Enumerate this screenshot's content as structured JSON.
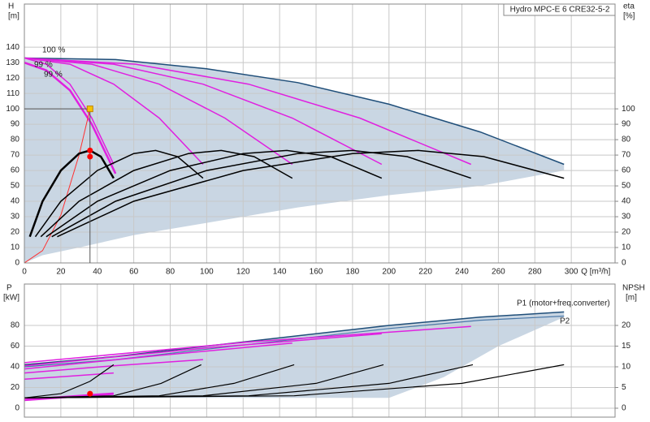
{
  "chart_data": [
    {
      "type": "line",
      "title": "Hydro MPC-E 6 CRE32-5-2",
      "ylabel": [
        "H",
        "[m]"
      ],
      "y2label": [
        "eta",
        "[%]"
      ],
      "xlabel": "Q [m³/h]",
      "xlim": [
        0,
        324
      ],
      "xticks": [
        0,
        20,
        40,
        60,
        80,
        100,
        120,
        140,
        160,
        180,
        200,
        220,
        240,
        260,
        280,
        300
      ],
      "ylim": [
        0,
        168
      ],
      "yticks": [
        0,
        10,
        20,
        30,
        40,
        50,
        60,
        70,
        80,
        90,
        100,
        110,
        120,
        130,
        140
      ],
      "y2lim": [
        0,
        168
      ],
      "y2ticks": [
        0,
        10,
        20,
        30,
        40,
        50,
        60,
        70,
        80,
        90,
        100
      ],
      "grid": true,
      "show_xtick_labels": true,
      "series": [
        {
          "kind": "area",
          "color": "#c9d6e3",
          "x": [
            0,
            50,
            100,
            150,
            200,
            250,
            296,
            296,
            250,
            200,
            150,
            100,
            60,
            30,
            10,
            0
          ],
          "values": [
            133,
            132,
            126,
            117,
            103,
            85,
            64,
            60,
            50,
            44,
            36,
            26,
            18,
            10,
            5,
            0
          ]
        },
        {
          "color": "#1f4e79",
          "width": 1.5,
          "x": [
            0,
            50,
            100,
            150,
            200,
            250,
            296
          ],
          "values": [
            133,
            132,
            126,
            117,
            103,
            85,
            64
          ]
        },
        {
          "color": "#e020e0",
          "width": 1.5,
          "x": [
            0,
            12,
            25,
            37,
            49
          ],
          "values": [
            133,
            129,
            116,
            94,
            64
          ]
        },
        {
          "color": "#e020e0",
          "width": 1.5,
          "x": [
            0,
            25,
            49,
            74,
            98
          ],
          "values": [
            133,
            129,
            116,
            94,
            64
          ]
        },
        {
          "color": "#e020e0",
          "width": 1.5,
          "x": [
            0,
            37,
            74,
            110,
            147
          ],
          "values": [
            133,
            129,
            116,
            94,
            64
          ]
        },
        {
          "color": "#e020e0",
          "width": 1.5,
          "x": [
            0,
            49,
            98,
            147,
            196
          ],
          "values": [
            133,
            129,
            116,
            94,
            64
          ]
        },
        {
          "color": "#e020e0",
          "width": 1.5,
          "x": [
            0,
            61,
            123,
            184,
            245
          ],
          "values": [
            133,
            129,
            116,
            94,
            64
          ]
        },
        {
          "color": "#e020e0",
          "width": 2.5,
          "x": [
            0,
            12,
            25,
            37,
            50
          ],
          "values": [
            130,
            125,
            112,
            90,
            58
          ]
        },
        {
          "color": "#ff3030",
          "width": 1,
          "x": [
            0,
            10,
            20,
            30,
            36
          ],
          "values": [
            0,
            8,
            31,
            70,
            100
          ]
        },
        {
          "color": "#000000",
          "width": 2.5,
          "axis": "y2",
          "x": [
            3,
            10,
            20,
            30,
            36,
            42,
            49
          ],
          "values": [
            17,
            40,
            60,
            71,
            73,
            69,
            55
          ]
        },
        {
          "color": "#000000",
          "width": 1.5,
          "axis": "y2",
          "x": [
            6,
            20,
            40,
            60,
            72,
            84,
            98
          ],
          "values": [
            17,
            40,
            60,
            71,
            73,
            69,
            55
          ]
        },
        {
          "color": "#000000",
          "width": 1.5,
          "axis": "y2",
          "x": [
            9,
            30,
            60,
            90,
            108,
            126,
            147
          ],
          "values": [
            17,
            40,
            60,
            71,
            73,
            69,
            55
          ]
        },
        {
          "color": "#000000",
          "width": 1.5,
          "axis": "y2",
          "x": [
            12,
            40,
            80,
            120,
            144,
            168,
            196
          ],
          "values": [
            17,
            40,
            60,
            71,
            73,
            69,
            55
          ]
        },
        {
          "color": "#000000",
          "width": 1.5,
          "axis": "y2",
          "x": [
            15,
            50,
            100,
            150,
            180,
            210,
            245
          ],
          "values": [
            17,
            40,
            60,
            71,
            73,
            69,
            55
          ]
        },
        {
          "color": "#000000",
          "width": 1.5,
          "axis": "y2",
          "x": [
            18,
            60,
            120,
            180,
            216,
            252,
            296
          ],
          "values": [
            17,
            40,
            60,
            71,
            73,
            69,
            55
          ]
        }
      ],
      "markers": [
        {
          "x": 36,
          "y": 100,
          "color": "#f5c400",
          "shape": "square",
          "crosshair": true
        },
        {
          "x": 36,
          "y": 73,
          "color": "#ff0000",
          "axis": "y2"
        },
        {
          "x": 36,
          "y": 69,
          "color": "#ff0000",
          "axis": "y2"
        }
      ],
      "annotations": [
        "100 %",
        "99 %",
        "99 %"
      ]
    },
    {
      "type": "line",
      "ylabel": [
        "P",
        "[kW]"
      ],
      "y2label": [
        "NPSH",
        "[m]"
      ],
      "xlim": [
        0,
        324
      ],
      "xticks": [
        0,
        20,
        40,
        60,
        80,
        100,
        120,
        140,
        160,
        180,
        200,
        220,
        240,
        260,
        280,
        300
      ],
      "ylim": [
        0,
        120
      ],
      "yticks": [
        0,
        20,
        40,
        60,
        80
      ],
      "y2lim": [
        0,
        30
      ],
      "y2ticks": [
        0,
        5,
        10,
        15,
        20
      ],
      "grid": true,
      "show_xtick_labels": false,
      "series": [
        {
          "kind": "area",
          "color": "#c9d6e3",
          "x": [
            0,
            50,
            100,
            150,
            200,
            250,
            296,
            296,
            260,
            230,
            200,
            150,
            100,
            50,
            0
          ],
          "values": [
            42,
            50,
            60,
            70,
            80,
            88,
            93,
            88,
            60,
            30,
            10,
            10,
            10,
            10,
            10
          ]
        },
        {
          "color": "#1f4e79",
          "width": 1.5,
          "x": [
            0,
            50,
            100,
            150,
            200,
            250,
            296
          ],
          "values": [
            42,
            50,
            60,
            70,
            80,
            88,
            93
          ]
        },
        {
          "color": "#4a78a8",
          "width": 1.2,
          "x": [
            0,
            50,
            100,
            150,
            200,
            250,
            296
          ],
          "values": [
            40,
            47,
            57,
            67,
            77,
            85,
            89
          ]
        },
        {
          "color": "#e020e0",
          "width": 1.5,
          "x": [
            0,
            25,
            49
          ],
          "values": [
            28,
            31,
            34
          ]
        },
        {
          "color": "#e020e0",
          "width": 1.5,
          "x": [
            0,
            49,
            98
          ],
          "values": [
            34,
            41,
            47
          ]
        },
        {
          "color": "#e020e0",
          "width": 1.5,
          "x": [
            0,
            74,
            147
          ],
          "values": [
            38,
            51,
            63
          ]
        },
        {
          "color": "#e020e0",
          "width": 1.5,
          "x": [
            0,
            98,
            196
          ],
          "values": [
            41,
            58,
            72
          ]
        },
        {
          "color": "#e020e0",
          "width": 1.5,
          "x": [
            0,
            123,
            245
          ],
          "values": [
            44,
            64,
            79
          ]
        },
        {
          "color": "#e020e0",
          "width": 3,
          "x": [
            0,
            49
          ],
          "values": [
            8,
            14
          ]
        },
        {
          "color": "#000000",
          "width": 1.2,
          "axis": "y2",
          "x": [
            0,
            20,
            36,
            49
          ],
          "values": [
            2.5,
            3.5,
            6.5,
            10.5
          ]
        },
        {
          "color": "#000000",
          "width": 1.2,
          "axis": "y2",
          "x": [
            0,
            49,
            75,
            97
          ],
          "values": [
            2.5,
            3,
            6,
            10.5
          ]
        },
        {
          "color": "#000000",
          "width": 1.2,
          "axis": "y2",
          "x": [
            0,
            74,
            115,
            148
          ],
          "values": [
            2.5,
            3,
            6,
            10.5
          ]
        },
        {
          "color": "#000000",
          "width": 1.2,
          "axis": "y2",
          "x": [
            0,
            98,
            160,
            197
          ],
          "values": [
            2.5,
            3,
            6,
            10.5
          ]
        },
        {
          "color": "#000000",
          "width": 1.2,
          "axis": "y2",
          "x": [
            0,
            123,
            200,
            246
          ],
          "values": [
            2.5,
            3,
            6,
            10.5
          ]
        },
        {
          "color": "#000000",
          "width": 1.2,
          "axis": "y2",
          "x": [
            0,
            148,
            240,
            296
          ],
          "values": [
            2.5,
            3,
            6,
            10.5
          ]
        }
      ],
      "markers": [
        {
          "x": 36,
          "y": 14,
          "color": "#ff0000"
        }
      ],
      "annotations": [
        "P1 (motor+freq.converter)",
        "P2"
      ]
    }
  ]
}
